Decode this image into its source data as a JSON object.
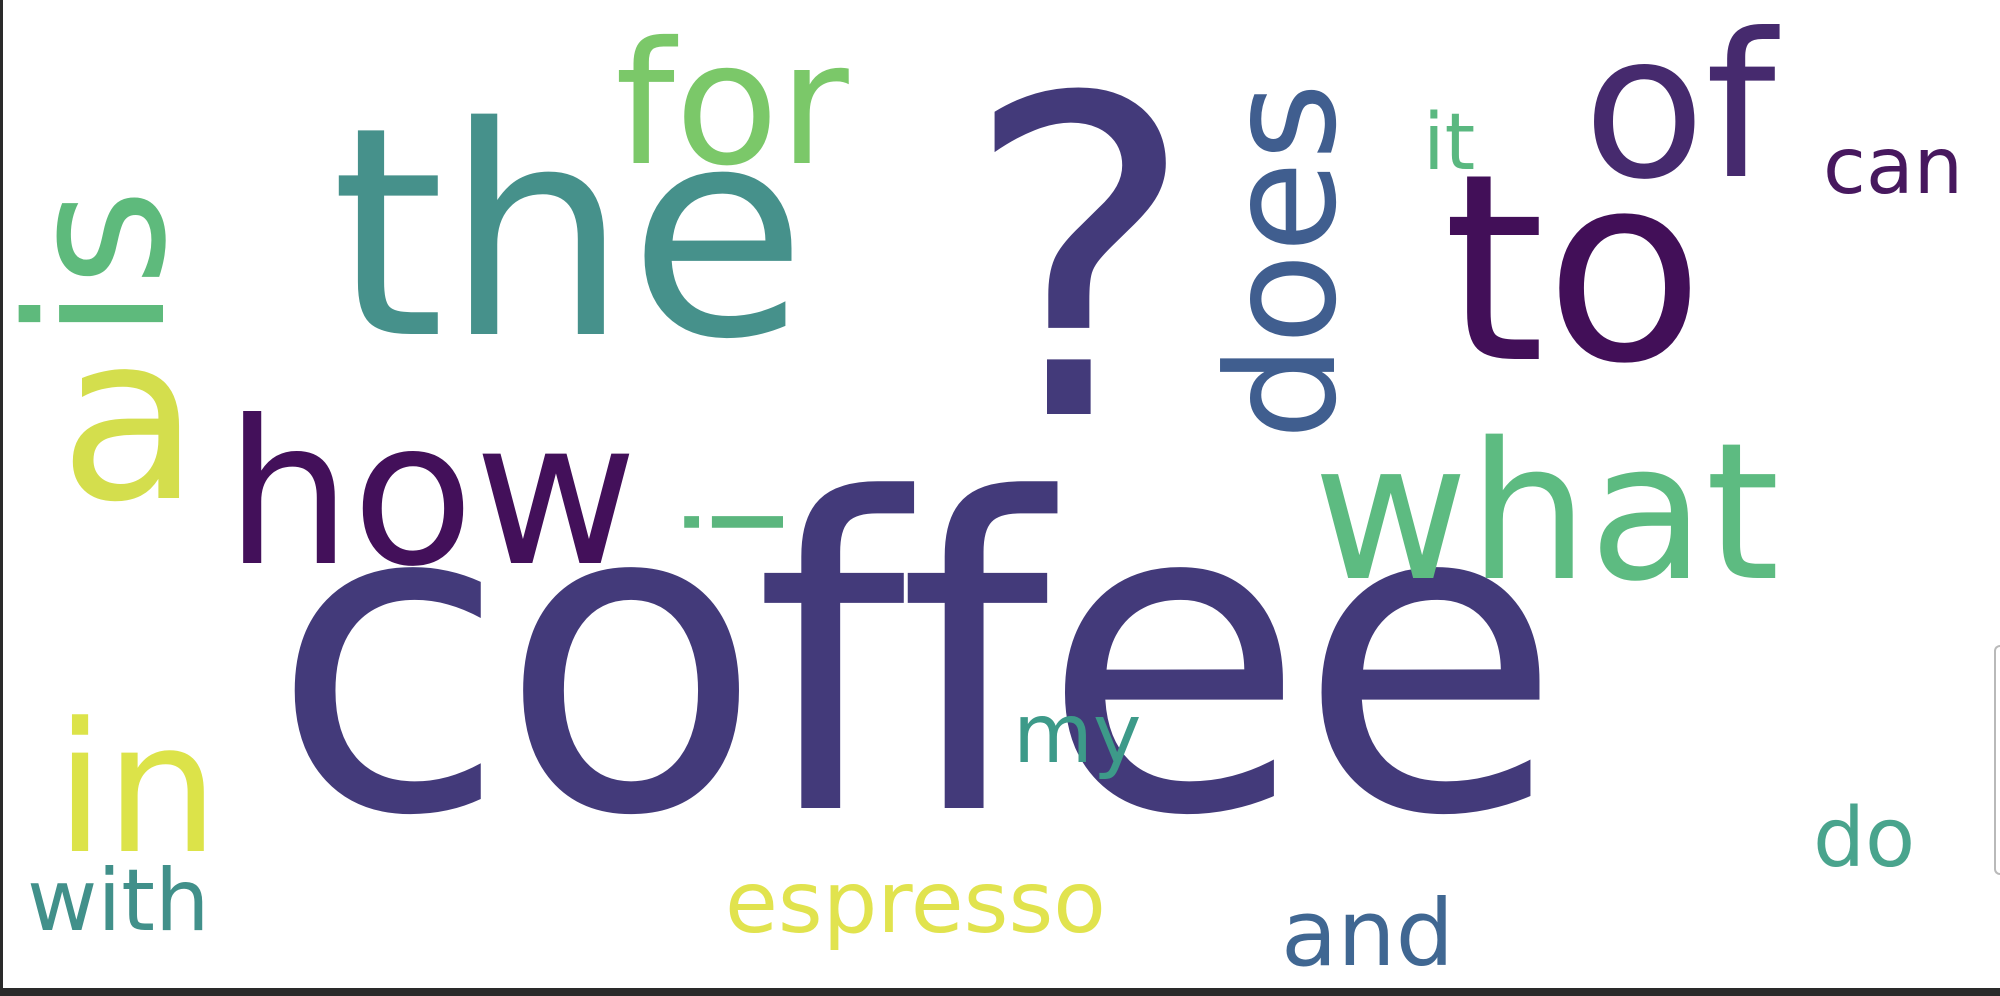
{
  "word_cloud": {
    "words": [
      {
        "id": "coffee",
        "text": "coffee",
        "color": "#433a7a"
      },
      {
        "id": "question",
        "text": "?",
        "color": "#433a7a"
      },
      {
        "id": "the",
        "text": "the",
        "color": "#46918b"
      },
      {
        "id": "to",
        "text": "to",
        "color": "#420f58"
      },
      {
        "id": "how",
        "text": "how",
        "color": "#43105a"
      },
      {
        "id": "what",
        "text": "what",
        "color": "#5dbb81"
      },
      {
        "id": "a",
        "text": "a",
        "color": "#d4de4d"
      },
      {
        "id": "is",
        "text": "is",
        "color": "#5eba7c"
      },
      {
        "id": "i",
        "text": "i",
        "color": "#5bb67e"
      },
      {
        "id": "for",
        "text": "for",
        "color": "#7bc869"
      },
      {
        "id": "of",
        "text": "of",
        "color": "#462a6e"
      },
      {
        "id": "does",
        "text": "does",
        "color": "#405e8f"
      },
      {
        "id": "in",
        "text": "in",
        "color": "#dce349"
      },
      {
        "id": "with",
        "text": "with",
        "color": "#41908a"
      },
      {
        "id": "espresso",
        "text": "espresso",
        "color": "#e1e34e"
      },
      {
        "id": "and",
        "text": "and",
        "color": "#406792"
      },
      {
        "id": "my",
        "text": "my",
        "color": "#3d9a89"
      },
      {
        "id": "do",
        "text": "do",
        "color": "#49a48d"
      },
      {
        "id": "it",
        "text": "it",
        "color": "#5ab880"
      },
      {
        "id": "can",
        "text": "can",
        "color": "#47185e"
      }
    ]
  }
}
